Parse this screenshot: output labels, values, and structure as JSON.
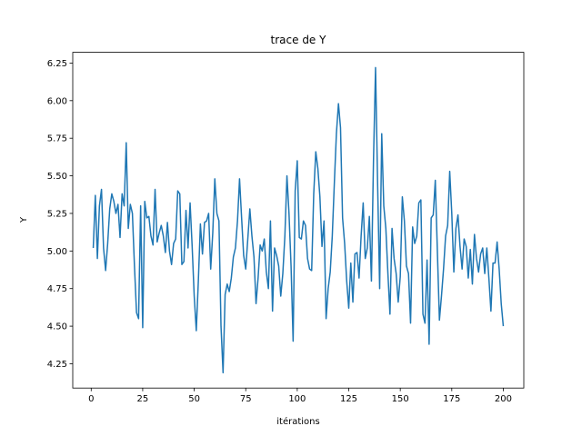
{
  "chart_data": {
    "type": "line",
    "title": "trace de Y",
    "x_label": "itérations",
    "y_label": "Y",
    "x": [
      1,
      2,
      3,
      4,
      5,
      6,
      7,
      8,
      9,
      10,
      11,
      12,
      13,
      14,
      15,
      16,
      17,
      18,
      19,
      20,
      21,
      22,
      23,
      24,
      25,
      26,
      27,
      28,
      29,
      30,
      31,
      32,
      33,
      34,
      35,
      36,
      37,
      38,
      39,
      40,
      41,
      42,
      43,
      44,
      45,
      46,
      47,
      48,
      49,
      50,
      51,
      52,
      53,
      54,
      55,
      56,
      57,
      58,
      59,
      60,
      61,
      62,
      63,
      64,
      65,
      66,
      67,
      68,
      69,
      70,
      71,
      72,
      73,
      74,
      75,
      76,
      77,
      78,
      79,
      80,
      81,
      82,
      83,
      84,
      85,
      86,
      87,
      88,
      89,
      90,
      91,
      92,
      93,
      94,
      95,
      96,
      97,
      98,
      99,
      100,
      101,
      102,
      103,
      104,
      105,
      106,
      107,
      108,
      109,
      110,
      111,
      112,
      113,
      114,
      115,
      116,
      117,
      118,
      119,
      120,
      121,
      122,
      123,
      124,
      125,
      126,
      127,
      128,
      129,
      130,
      131,
      132,
      133,
      134,
      135,
      136,
      137,
      138,
      139,
      140,
      141,
      142,
      143,
      144,
      145,
      146,
      147,
      148,
      149,
      150,
      151,
      152,
      153,
      154,
      155,
      156,
      157,
      158,
      159,
      160,
      161,
      162,
      163,
      164,
      165,
      166,
      167,
      168,
      169,
      170,
      171,
      172,
      173,
      174,
      175,
      176,
      177,
      178,
      179,
      180,
      181,
      182,
      183,
      184,
      185,
      186,
      187,
      188,
      189,
      190,
      191,
      192,
      193,
      194,
      195,
      196,
      197,
      198,
      199,
      200
    ],
    "series": [
      {
        "color": "#1f77b4",
        "values": [
          5.02,
          5.37,
          4.95,
          5.3,
          5.41,
          5.02,
          4.87,
          5.05,
          5.28,
          5.38,
          5.33,
          5.25,
          5.31,
          5.09,
          5.38,
          5.3,
          5.72,
          5.15,
          5.31,
          5.25,
          4.9,
          4.59,
          4.55,
          5.3,
          4.49,
          5.33,
          5.22,
          5.23,
          5.1,
          5.04,
          5.41,
          5.06,
          5.12,
          5.17,
          5.1,
          4.99,
          5.19,
          5.0,
          4.91,
          5.05,
          5.08,
          5.4,
          5.38,
          4.91,
          4.93,
          5.27,
          5.02,
          5.32,
          5.03,
          4.7,
          4.47,
          4.8,
          5.18,
          4.98,
          5.19,
          5.2,
          5.25,
          4.88,
          5.12,
          5.48,
          5.25,
          5.2,
          4.5,
          4.19,
          4.71,
          4.78,
          4.73,
          4.82,
          4.96,
          5.02,
          5.2,
          5.48,
          5.22,
          4.97,
          4.88,
          5.08,
          5.28,
          5.1,
          4.96,
          4.65,
          4.82,
          5.04,
          5.0,
          5.08,
          4.86,
          4.75,
          5.2,
          4.6,
          5.02,
          4.97,
          4.9,
          4.7,
          4.85,
          5.1,
          5.5,
          5.25,
          4.9,
          4.4,
          5.4,
          5.6,
          5.09,
          5.08,
          5.2,
          5.17,
          4.95,
          4.88,
          4.87,
          5.38,
          5.66,
          5.55,
          5.36,
          5.03,
          5.2,
          4.55,
          4.75,
          4.86,
          5.1,
          5.45,
          5.78,
          5.98,
          5.82,
          5.22,
          5.05,
          4.8,
          4.62,
          4.92,
          4.66,
          4.98,
          4.99,
          4.82,
          5.1,
          5.32,
          4.95,
          5.02,
          5.23,
          4.8,
          5.6,
          6.22,
          5.45,
          4.75,
          5.78,
          5.3,
          5.15,
          4.85,
          4.58,
          5.15,
          4.95,
          4.85,
          4.66,
          4.83,
          5.36,
          5.2,
          4.9,
          4.85,
          4.52,
          5.16,
          5.05,
          5.1,
          5.32,
          5.34,
          4.58,
          4.52,
          4.94,
          4.38,
          5.22,
          5.24,
          5.47,
          5.0,
          4.54,
          4.7,
          4.88,
          5.1,
          5.17,
          5.53,
          5.25,
          4.86,
          5.15,
          5.24,
          5.03,
          4.88,
          5.08,
          5.03,
          4.82,
          5.01,
          4.78,
          5.11,
          4.95,
          4.86,
          4.98,
          5.02,
          4.85,
          5.02,
          4.82,
          4.6,
          4.92,
          4.92,
          5.06,
          4.88,
          4.65,
          4.5
        ]
      }
    ],
    "xlim": [
      -8.95,
      209.95
    ],
    "ylim": [
      4.0885,
      6.3215
    ],
    "xticks": [
      0,
      25,
      50,
      75,
      100,
      125,
      150,
      175,
      200
    ],
    "yticks": [
      4.25,
      {
        "value": 4.5,
        "label": "4.50"
      },
      4.75,
      {
        "value": 5,
        "label": "5.00"
      },
      5.25,
      {
        "value": 5.5,
        "label": "5.50"
      },
      5.75,
      {
        "value": 6,
        "label": "6.00"
      },
      6.25
    ]
  }
}
